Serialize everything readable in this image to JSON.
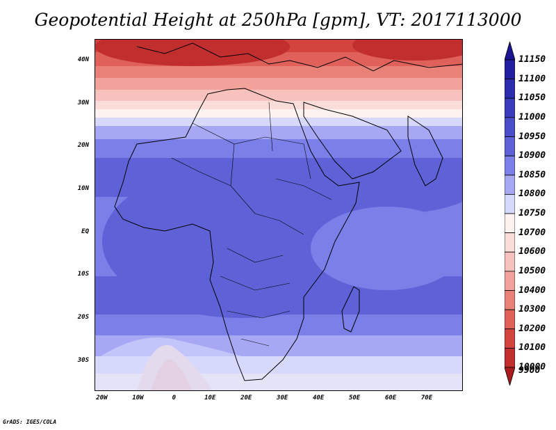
{
  "title": "Geopotential Height at 250hPa [gpm], VT: 2017113000",
  "credit": "GrADS: IGES/COLA",
  "map": {
    "lon_range": [
      -22,
      80
    ],
    "lat_range": [
      -37,
      45
    ],
    "lat_ticks": [
      {
        "lat": 40,
        "label": "40N"
      },
      {
        "lat": 30,
        "label": "30N"
      },
      {
        "lat": 20,
        "label": "20N"
      },
      {
        "lat": 10,
        "label": "10N"
      },
      {
        "lat": 0,
        "label": "EQ"
      },
      {
        "lat": -10,
        "label": "10S"
      },
      {
        "lat": -20,
        "label": "20S"
      },
      {
        "lat": -30,
        "label": "30S"
      }
    ],
    "lon_ticks": [
      {
        "lon": -20,
        "label": "20W"
      },
      {
        "lon": -10,
        "label": "10W"
      },
      {
        "lon": 0,
        "label": "0"
      },
      {
        "lon": 10,
        "label": "10E"
      },
      {
        "lon": 20,
        "label": "20E"
      },
      {
        "lon": 30,
        "label": "30E"
      },
      {
        "lon": 40,
        "label": "40E"
      },
      {
        "lon": 50,
        "label": "50E"
      },
      {
        "lon": 60,
        "label": "60E"
      },
      {
        "lon": 70,
        "label": "70E"
      }
    ]
  },
  "colorbar": {
    "levels": [
      {
        "label": "11150",
        "color": "#1a1490"
      },
      {
        "label": "11100",
        "color": "#221ea0"
      },
      {
        "label": "11050",
        "color": "#2c2cae"
      },
      {
        "label": "11000",
        "color": "#3a3cbc"
      },
      {
        "label": "10950",
        "color": "#4a4ec8"
      },
      {
        "label": "10900",
        "color": "#5e62d6"
      },
      {
        "label": "10850",
        "color": "#7b7fe8"
      },
      {
        "label": "10800",
        "color": "#a6a8f4"
      },
      {
        "label": "10750",
        "color": "#d6d8fc"
      },
      {
        "label": "10700",
        "color": "#fdf2f0"
      },
      {
        "label": "10600",
        "color": "#fadcd8"
      },
      {
        "label": "10500",
        "color": "#f7c2bd"
      },
      {
        "label": "10400",
        "color": "#f1a29b"
      },
      {
        "label": "10300",
        "color": "#e98179"
      },
      {
        "label": "10200",
        "color": "#e0615a"
      },
      {
        "label": "10100",
        "color": "#d4443f"
      },
      {
        "label": "10000",
        "color": "#c02e2e"
      },
      {
        "label": "9900",
        "color": "#a81c1c"
      }
    ]
  }
}
